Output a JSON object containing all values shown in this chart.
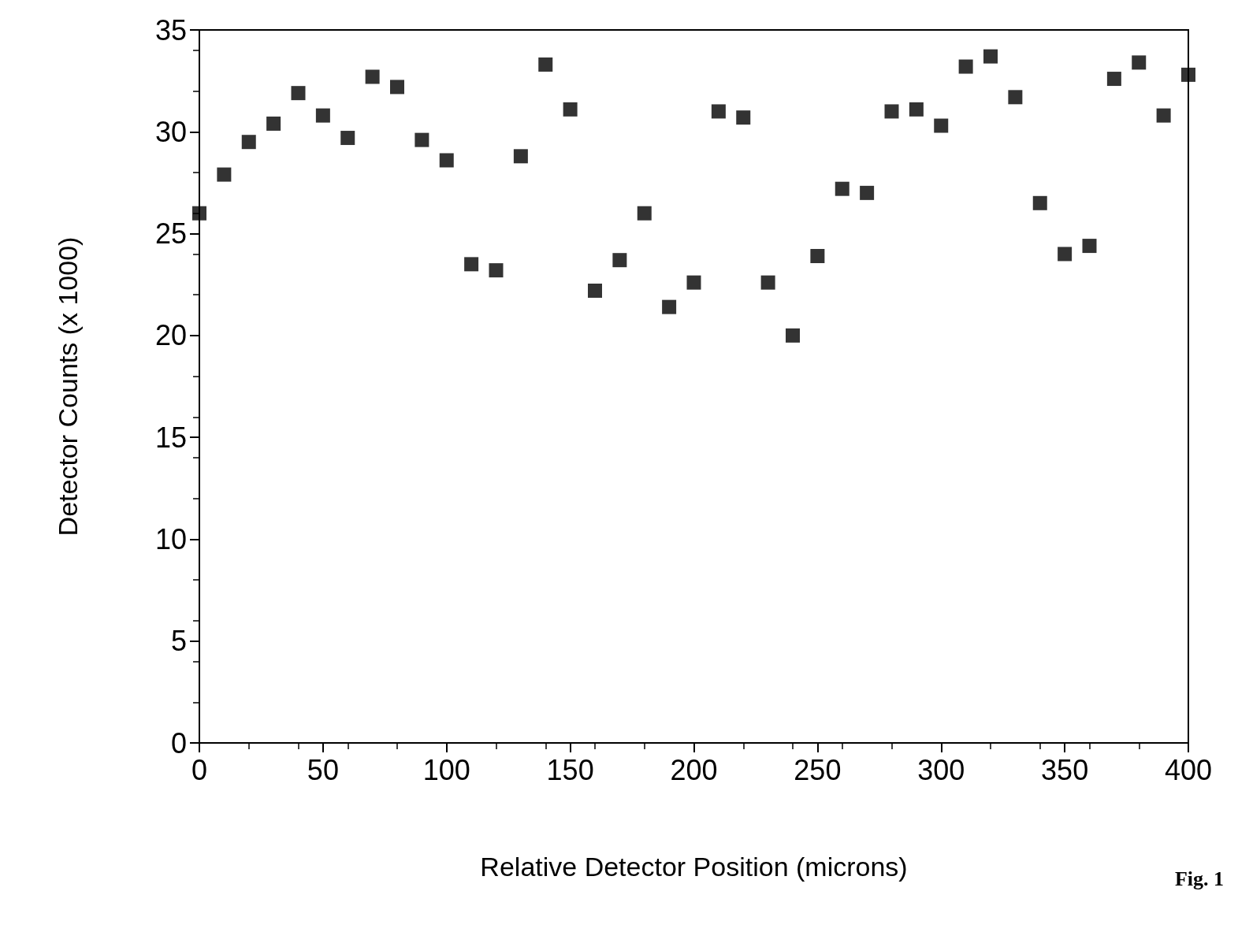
{
  "chart_data": {
    "type": "scatter",
    "xlabel": "Relative Detector Position (microns)",
    "ylabel": "Detector Counts (x 1000)",
    "annotations": [
      "Fig. 1"
    ],
    "x": [
      0,
      10,
      20,
      30,
      40,
      50,
      60,
      70,
      80,
      90,
      100,
      110,
      120,
      130,
      140,
      150,
      160,
      170,
      180,
      190,
      200,
      210,
      220,
      230,
      240,
      250,
      260,
      270,
      280,
      290,
      300,
      310,
      320,
      330,
      340,
      350,
      360,
      370,
      380,
      390,
      400
    ],
    "series": [
      {
        "color": "#000000",
        "values": [
          26.0,
          27.9,
          29.5,
          30.4,
          31.9,
          30.8,
          29.7,
          32.7,
          32.2,
          29.6,
          28.6,
          23.5,
          23.2,
          28.8,
          33.3,
          31.1,
          22.2,
          23.7,
          26.0,
          21.4,
          22.6,
          31.0,
          30.7,
          22.6,
          20.0,
          23.9,
          27.2,
          27.0,
          31.0,
          31.1,
          30.3,
          33.2,
          33.7,
          31.7,
          26.5,
          24.0,
          24.4,
          32.6,
          33.4,
          30.8,
          32.8
        ]
      }
    ],
    "xlim": [
      0,
      400
    ],
    "xticks": [
      0,
      50,
      100,
      150,
      200,
      250,
      300,
      350,
      400
    ],
    "ylim": [
      0,
      35
    ],
    "yticks": [
      0,
      5,
      10,
      15,
      20,
      25,
      30,
      35
    ],
    "grid": false,
    "marker": "square"
  }
}
